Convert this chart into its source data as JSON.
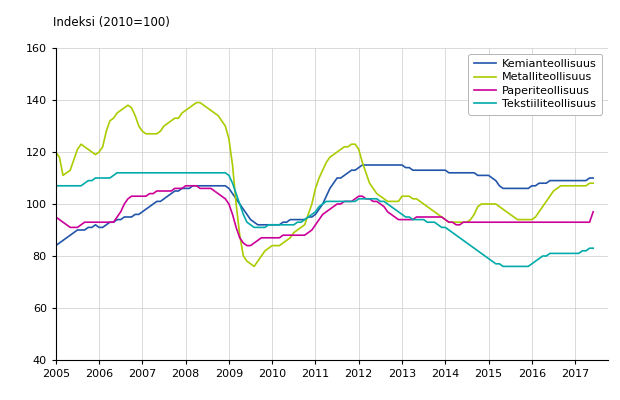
{
  "title": "Indeksi (2010=100)",
  "ylim": [
    40,
    160
  ],
  "yticks": [
    40,
    60,
    80,
    100,
    120,
    140,
    160
  ],
  "xlim": [
    2005.0,
    2017.75
  ],
  "xticks": [
    2005,
    2006,
    2007,
    2008,
    2009,
    2010,
    2011,
    2012,
    2013,
    2014,
    2015,
    2016,
    2017
  ],
  "legend_labels": [
    "Kemianteollisuus",
    "Metalliteollisuus",
    "Paperiteollisuus",
    "Tekstiiliteollisuus"
  ],
  "colors": {
    "Kemianteollisuus": "#2255aa",
    "Metalliteollisuus": "#aacc00",
    "Paperiteollisuus": "#cc0099",
    "Tekstiiliteollisuus": "#00aaaa"
  },
  "kemian": [
    84,
    85,
    86,
    87,
    88,
    89,
    90,
    90,
    90,
    91,
    91,
    92,
    91,
    91,
    92,
    93,
    93,
    94,
    94,
    95,
    95,
    95,
    96,
    96,
    97,
    98,
    99,
    100,
    101,
    101,
    102,
    103,
    104,
    105,
    105,
    106,
    106,
    106,
    107,
    107,
    107,
    107,
    107,
    107,
    107,
    107,
    107,
    107,
    106,
    104,
    102,
    100,
    98,
    96,
    94,
    93,
    92,
    92,
    92,
    92,
    92,
    92,
    92,
    93,
    93,
    94,
    94,
    94,
    94,
    94,
    95,
    95,
    96,
    98,
    100,
    103,
    106,
    108,
    110,
    110,
    111,
    112,
    113,
    113,
    114,
    115,
    115,
    115,
    115,
    115,
    115,
    115,
    115,
    115,
    115,
    115,
    115,
    114,
    114,
    113,
    113,
    113,
    113,
    113,
    113,
    113,
    113,
    113,
    113,
    112,
    112,
    112,
    112,
    112,
    112,
    112,
    112,
    111,
    111,
    111,
    111,
    110,
    109,
    107,
    106,
    106,
    106,
    106,
    106,
    106,
    106,
    106,
    107,
    107,
    108,
    108,
    108,
    109,
    109,
    109,
    109,
    109,
    109,
    109,
    109,
    109,
    109,
    109,
    110,
    110
  ],
  "metalli": [
    120,
    118,
    111,
    112,
    113,
    117,
    121,
    123,
    122,
    121,
    120,
    119,
    120,
    122,
    128,
    132,
    133,
    135,
    136,
    137,
    138,
    137,
    134,
    130,
    128,
    127,
    127,
    127,
    127,
    128,
    130,
    131,
    132,
    133,
    133,
    135,
    136,
    137,
    138,
    139,
    139,
    138,
    137,
    136,
    135,
    134,
    132,
    130,
    125,
    115,
    100,
    88,
    80,
    78,
    77,
    76,
    78,
    80,
    82,
    83,
    84,
    84,
    84,
    85,
    86,
    87,
    89,
    90,
    91,
    92,
    96,
    100,
    106,
    110,
    113,
    116,
    118,
    119,
    120,
    121,
    122,
    122,
    123,
    123,
    121,
    116,
    112,
    108,
    106,
    104,
    103,
    102,
    101,
    101,
    101,
    101,
    103,
    103,
    103,
    102,
    102,
    101,
    100,
    99,
    98,
    97,
    96,
    95,
    94,
    93,
    93,
    93,
    93,
    93,
    93,
    94,
    96,
    99,
    100,
    100,
    100,
    100,
    100,
    99,
    98,
    97,
    96,
    95,
    94,
    94,
    94,
    94,
    94,
    95,
    97,
    99,
    101,
    103,
    105,
    106,
    107,
    107,
    107,
    107,
    107,
    107,
    107,
    107,
    108,
    108
  ],
  "paperi": [
    95,
    94,
    93,
    92,
    91,
    91,
    91,
    92,
    93,
    93,
    93,
    93,
    93,
    93,
    93,
    93,
    93,
    95,
    97,
    100,
    102,
    103,
    103,
    103,
    103,
    103,
    104,
    104,
    105,
    105,
    105,
    105,
    105,
    106,
    106,
    106,
    107,
    107,
    107,
    107,
    106,
    106,
    106,
    106,
    105,
    104,
    103,
    102,
    100,
    96,
    91,
    87,
    85,
    84,
    84,
    85,
    86,
    87,
    87,
    87,
    87,
    87,
    87,
    88,
    88,
    88,
    88,
    88,
    88,
    88,
    89,
    90,
    92,
    94,
    96,
    97,
    98,
    99,
    100,
    100,
    101,
    101,
    101,
    102,
    103,
    103,
    102,
    102,
    101,
    101,
    100,
    99,
    97,
    96,
    95,
    94,
    94,
    94,
    94,
    94,
    95,
    95,
    95,
    95,
    95,
    95,
    95,
    95,
    94,
    93,
    93,
    92,
    92,
    93,
    93,
    93,
    93,
    93,
    93,
    93,
    93,
    93,
    93,
    93,
    93,
    93,
    93,
    93,
    93,
    93,
    93,
    93,
    93,
    93,
    93,
    93,
    93,
    93,
    93,
    93,
    93,
    93,
    93,
    93,
    93,
    93,
    93,
    93,
    93,
    97
  ],
  "tekstiili": [
    107,
    107,
    107,
    107,
    107,
    107,
    107,
    107,
    108,
    109,
    109,
    110,
    110,
    110,
    110,
    110,
    111,
    112,
    112,
    112,
    112,
    112,
    112,
    112,
    112,
    112,
    112,
    112,
    112,
    112,
    112,
    112,
    112,
    112,
    112,
    112,
    112,
    112,
    112,
    112,
    112,
    112,
    112,
    112,
    112,
    112,
    112,
    112,
    111,
    108,
    104,
    100,
    96,
    93,
    92,
    91,
    91,
    91,
    91,
    92,
    92,
    92,
    92,
    92,
    92,
    92,
    92,
    93,
    93,
    94,
    95,
    96,
    97,
    99,
    100,
    101,
    101,
    101,
    101,
    101,
    101,
    101,
    101,
    101,
    102,
    102,
    102,
    102,
    102,
    102,
    101,
    101,
    100,
    99,
    98,
    97,
    96,
    95,
    95,
    94,
    94,
    94,
    94,
    93,
    93,
    93,
    92,
    91,
    91,
    90,
    89,
    88,
    87,
    86,
    85,
    84,
    83,
    82,
    81,
    80,
    79,
    78,
    77,
    77,
    76,
    76,
    76,
    76,
    76,
    76,
    76,
    76,
    77,
    78,
    79,
    80,
    80,
    81,
    81,
    81,
    81,
    81,
    81,
    81,
    81,
    81,
    82,
    82,
    83,
    83
  ]
}
